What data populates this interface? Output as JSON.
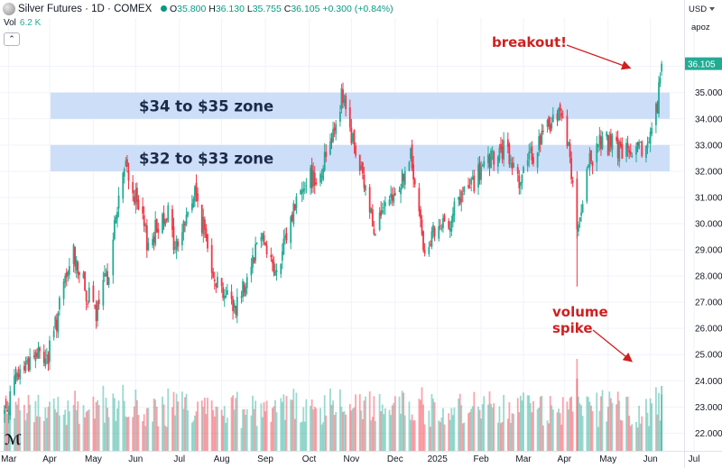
{
  "header": {
    "title": "Silver Futures · 1D · COMEX",
    "ohlc": {
      "o_label": "O",
      "o": "35.800",
      "h_label": "H",
      "h": "36.130",
      "l_label": "L",
      "l": "35.755",
      "c_label": "C",
      "c": "36.105",
      "change": "+0.300 (+0.84%)"
    },
    "volume_label": "Vol",
    "volume_value": "6.2 K",
    "collapse_icon": "chevron-up-icon",
    "currency": "USD",
    "scale_toggle": "apoz"
  },
  "logo_text": "TV",
  "colors": {
    "up": "#22ab94",
    "down": "#f23645",
    "zone": "#c8daf7",
    "annotation": "#d11f1f"
  },
  "annotations": {
    "zone_upper": "$34 to $35 zone",
    "zone_lower": "$32 to $33 zone",
    "breakout": "breakout!",
    "volume_line1": "volume",
    "volume_line2": "spike"
  },
  "chart_data": {
    "type": "candlestick",
    "title": "",
    "xlabel": "",
    "ylabel": "",
    "ylim": [
      21.4,
      36.3
    ],
    "y_ticks": [
      22,
      23,
      24,
      25,
      26,
      27,
      28,
      29,
      30,
      31,
      32,
      33,
      34,
      35,
      36
    ],
    "x_ticks": [
      "Mar",
      "Apr",
      "May",
      "Jun",
      "Jul",
      "Aug",
      "Sep",
      "Oct",
      "Nov",
      "Dec",
      "2025",
      "Feb",
      "Mar",
      "Apr",
      "May",
      "Jun",
      "Jul"
    ],
    "zones": [
      {
        "label": "$34 to $35 zone",
        "low": 34.0,
        "high": 35.0
      },
      {
        "label": "$32 to $33 zone",
        "low": 32.0,
        "high": 33.0
      }
    ],
    "close_path": [
      [
        "2024-02-26",
        22.8
      ],
      [
        "2024-03-08",
        24.4
      ],
      [
        "2024-03-18",
        25.0
      ],
      [
        "2024-03-28",
        24.9
      ],
      [
        "2024-04-08",
        27.5
      ],
      [
        "2024-04-15",
        28.9
      ],
      [
        "2024-04-23",
        27.5
      ],
      [
        "2024-05-01",
        26.5
      ],
      [
        "2024-05-10",
        28.3
      ],
      [
        "2024-05-17",
        31.0
      ],
      [
        "2024-05-22",
        32.2
      ],
      [
        "2024-05-31",
        30.5
      ],
      [
        "2024-06-07",
        29.2
      ],
      [
        "2024-06-20",
        30.6
      ],
      [
        "2024-06-26",
        29.0
      ],
      [
        "2024-07-10",
        31.2
      ],
      [
        "2024-07-18",
        29.4
      ],
      [
        "2024-07-25",
        27.9
      ],
      [
        "2024-08-07",
        26.8
      ],
      [
        "2024-08-14",
        27.7
      ],
      [
        "2024-08-26",
        29.8
      ],
      [
        "2024-09-06",
        27.9
      ],
      [
        "2024-09-18",
        30.6
      ],
      [
        "2024-09-26",
        31.7
      ],
      [
        "2024-10-07",
        31.9
      ],
      [
        "2024-10-22",
        34.8
      ],
      [
        "2024-11-01",
        32.7
      ],
      [
        "2024-11-14",
        30.0
      ],
      [
        "2024-11-25",
        30.6
      ],
      [
        "2024-12-10",
        32.5
      ],
      [
        "2024-12-19",
        29.2
      ],
      [
        "2025-01-02",
        29.8
      ],
      [
        "2025-01-15",
        31.0
      ],
      [
        "2025-01-31",
        32.1
      ],
      [
        "2025-02-14",
        32.8
      ],
      [
        "2025-02-26",
        31.7
      ],
      [
        "2025-03-10",
        33.0
      ],
      [
        "2025-03-20",
        33.9
      ],
      [
        "2025-03-28",
        34.4
      ],
      [
        "2025-04-03",
        32.0
      ],
      [
        "2025-04-08",
        29.6
      ],
      [
        "2025-04-16",
        32.4
      ],
      [
        "2025-04-24",
        33.2
      ],
      [
        "2025-05-06",
        32.8
      ],
      [
        "2025-05-20",
        32.6
      ],
      [
        "2025-05-28",
        33.2
      ],
      [
        "2025-06-03",
        34.6
      ],
      [
        "2025-06-06",
        36.1
      ]
    ],
    "volume_spike_date": "2025-06-06"
  }
}
